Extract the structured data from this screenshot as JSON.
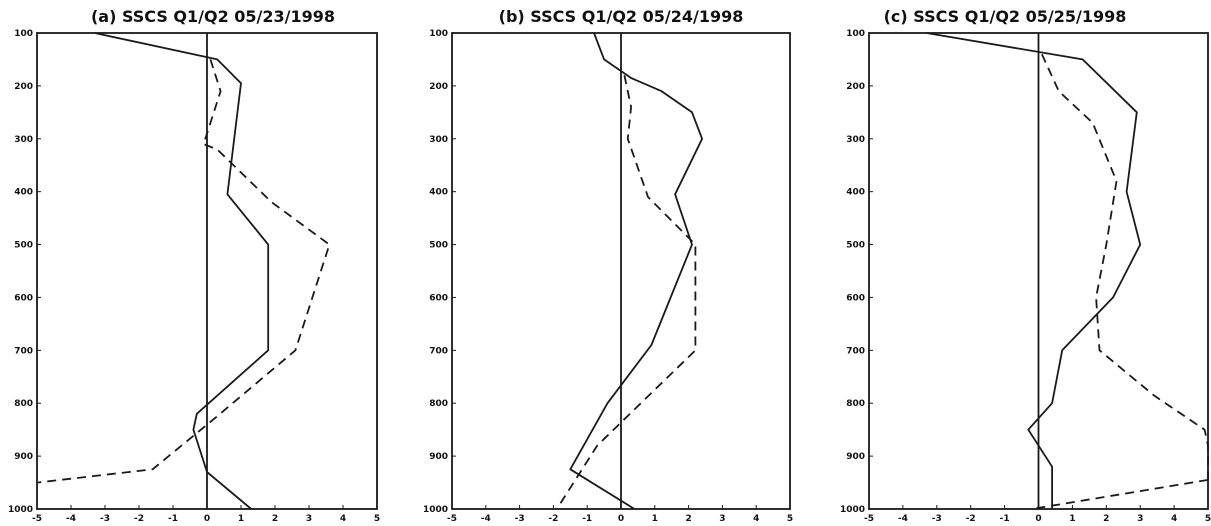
{
  "chart_data": [
    {
      "type": "line",
      "title": "(a) SSCS Q1/Q2 05/23/1998",
      "xlabel": "",
      "ylabel": "",
      "xlim": [
        -5,
        5
      ],
      "ylim": [
        1000,
        100
      ],
      "y_inverted": true,
      "grid": false,
      "xticks": [
        -5,
        -4,
        -3,
        -2,
        -1,
        0,
        1,
        2,
        3,
        4,
        5
      ],
      "yticks": [
        100,
        200,
        300,
        400,
        500,
        600,
        700,
        800,
        900,
        1000
      ],
      "series": [
        {
          "style": "solid",
          "color": "#1a1a1a",
          "x": [
            -3.3,
            0.3,
            1.0,
            0.8,
            0.6,
            1.8,
            1.8,
            -0.3,
            -0.4,
            0.0,
            1.3
          ],
          "y": [
            100,
            150,
            195,
            300,
            405,
            500,
            700,
            820,
            850,
            930,
            1000
          ]
        },
        {
          "style": "dashed",
          "color": "#1a1a1a",
          "x": [
            0.1,
            0.4,
            -0.1,
            0.3,
            1.9,
            3.6,
            2.6,
            0.2,
            -1.6,
            -5.0
          ],
          "y": [
            150,
            210,
            310,
            320,
            420,
            500,
            700,
            830,
            925,
            950
          ]
        }
      ]
    },
    {
      "type": "line",
      "title": "(b) SSCS Q1/Q2 05/24/1998",
      "xlabel": "",
      "ylabel": "",
      "xlim": [
        -5,
        5
      ],
      "ylim": [
        1000,
        100
      ],
      "y_inverted": true,
      "grid": false,
      "xticks": [
        -5,
        -4,
        -3,
        -2,
        -1,
        0,
        1,
        2,
        3,
        4,
        5
      ],
      "yticks": [
        100,
        200,
        300,
        400,
        500,
        600,
        700,
        800,
        900,
        1000
      ],
      "series": [
        {
          "style": "solid",
          "color": "#1a1a1a",
          "x": [
            -0.8,
            -0.5,
            0.3,
            1.2,
            2.1,
            2.4,
            1.6,
            2.1,
            0.9,
            -0.4,
            -1.5,
            0.4
          ],
          "y": [
            100,
            150,
            185,
            210,
            250,
            300,
            405,
            500,
            690,
            800,
            925,
            1000
          ]
        },
        {
          "style": "dashed",
          "color": "#1a1a1a",
          "x": [
            0.1,
            0.3,
            0.2,
            0.8,
            2.2,
            2.2,
            -0.7,
            -1.9
          ],
          "y": [
            180,
            240,
            300,
            410,
            500,
            700,
            880,
            1000
          ]
        }
      ]
    },
    {
      "type": "line",
      "title": "(c) SSCS Q1/Q2 05/25/1998",
      "xlabel": "",
      "ylabel": "",
      "xlim": [
        -5,
        5
      ],
      "ylim": [
        1000,
        100
      ],
      "y_inverted": true,
      "grid": false,
      "xticks": [
        -5,
        -4,
        -3,
        -2,
        -1,
        0,
        1,
        2,
        3,
        4,
        5
      ],
      "yticks": [
        100,
        200,
        300,
        400,
        500,
        600,
        700,
        800,
        900,
        1000
      ],
      "series": [
        {
          "style": "solid",
          "color": "#1a1a1a",
          "x": [
            -3.3,
            1.3,
            2.9,
            2.6,
            3.0,
            2.2,
            0.7,
            0.4,
            -0.3,
            0.4,
            0.4
          ],
          "y": [
            100,
            150,
            250,
            400,
            500,
            600,
            700,
            800,
            850,
            920,
            1000
          ]
        },
        {
          "style": "dashed",
          "color": "#1a1a1a",
          "x": [
            0.1,
            0.6,
            1.6,
            2.3,
            2.0,
            1.7,
            1.8,
            3.4,
            4.9,
            5.0,
            5.0
          ],
          "y": [
            140,
            210,
            270,
            380,
            500,
            600,
            700,
            785,
            850,
            880,
            945
          ]
        },
        {
          "style": "dashed",
          "color": "#1a1a1a",
          "x": [
            5.0,
            -0.2
          ],
          "y": [
            945,
            1000
          ]
        }
      ]
    }
  ]
}
